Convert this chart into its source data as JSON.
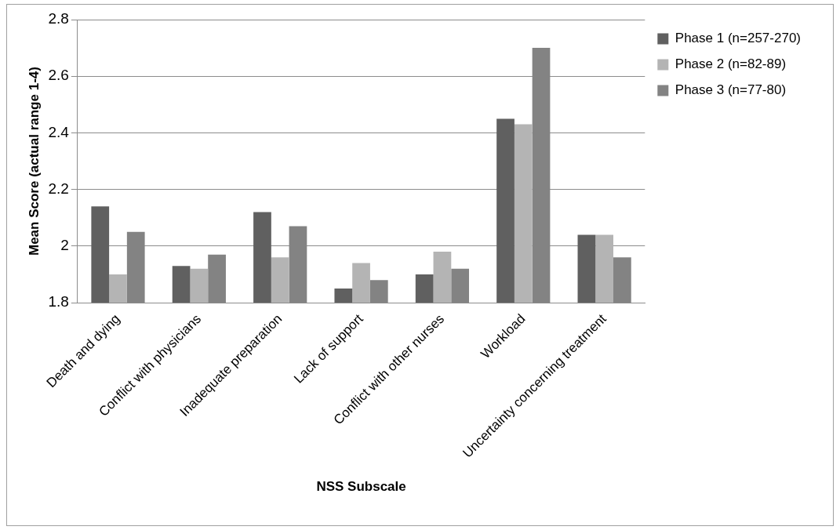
{
  "chart_data": {
    "type": "bar",
    "xlabel": "NSS Subscale",
    "ylabel": "Mean Score (actual range 1-4)",
    "categories": [
      "Death and dying",
      "Conflict with physicians",
      "Inadequate preparation",
      "Lack of support",
      "Conflict with other nurses",
      "Workload",
      "Uncertainty concerning treatment"
    ],
    "series": [
      {
        "name": "Phase 1 (n=257-270)",
        "color": "#606060",
        "values": [
          2.14,
          1.93,
          2.12,
          1.85,
          1.9,
          2.45,
          2.04
        ]
      },
      {
        "name": "Phase 2 (n=82-89)",
        "color": "#b4b4b4",
        "values": [
          1.9,
          1.92,
          1.96,
          1.94,
          1.98,
          2.43,
          2.04
        ]
      },
      {
        "name": "Phase 3 (n=77-80)",
        "color": "#838383",
        "values": [
          2.05,
          1.97,
          2.07,
          1.88,
          1.92,
          2.7,
          1.96
        ]
      }
    ],
    "ylim": [
      1.8,
      2.8
    ],
    "yticks": [
      1.8,
      2,
      2.2,
      2.4,
      2.6,
      2.8
    ],
    "grid": "y",
    "legend": "right"
  }
}
